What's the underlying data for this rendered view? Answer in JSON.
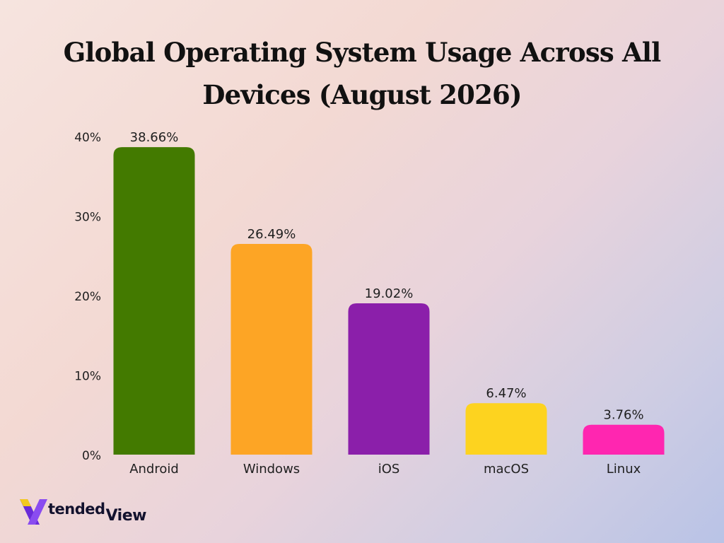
{
  "chart_data": {
    "type": "bar",
    "title": "Global Operating System Usage Across All Devices (August 2026)",
    "xlabel": "",
    "ylabel": "",
    "categories": [
      "Android",
      "Windows",
      "iOS",
      "macOS",
      "Linux"
    ],
    "values": [
      38.66,
      26.49,
      19.02,
      6.47,
      3.76
    ],
    "value_labels": [
      "38.66%",
      "26.49%",
      "19.02%",
      "6.47%",
      "3.76%"
    ],
    "colors": [
      "#437a00",
      "#fda525",
      "#8b1faa",
      "#fdd31f",
      "#ff26b0"
    ],
    "ylim": [
      0,
      40
    ],
    "yticks": [
      0,
      10,
      20,
      30,
      40
    ],
    "ytick_labels": [
      "0%",
      "10%",
      "20%",
      "30%",
      "40%"
    ],
    "grid": false,
    "legend": "none"
  },
  "branding": {
    "logo_text_main": "tended",
    "logo_text_secondary": "View",
    "logo_colors": [
      "#6a2bd9",
      "#f2c81f"
    ]
  }
}
